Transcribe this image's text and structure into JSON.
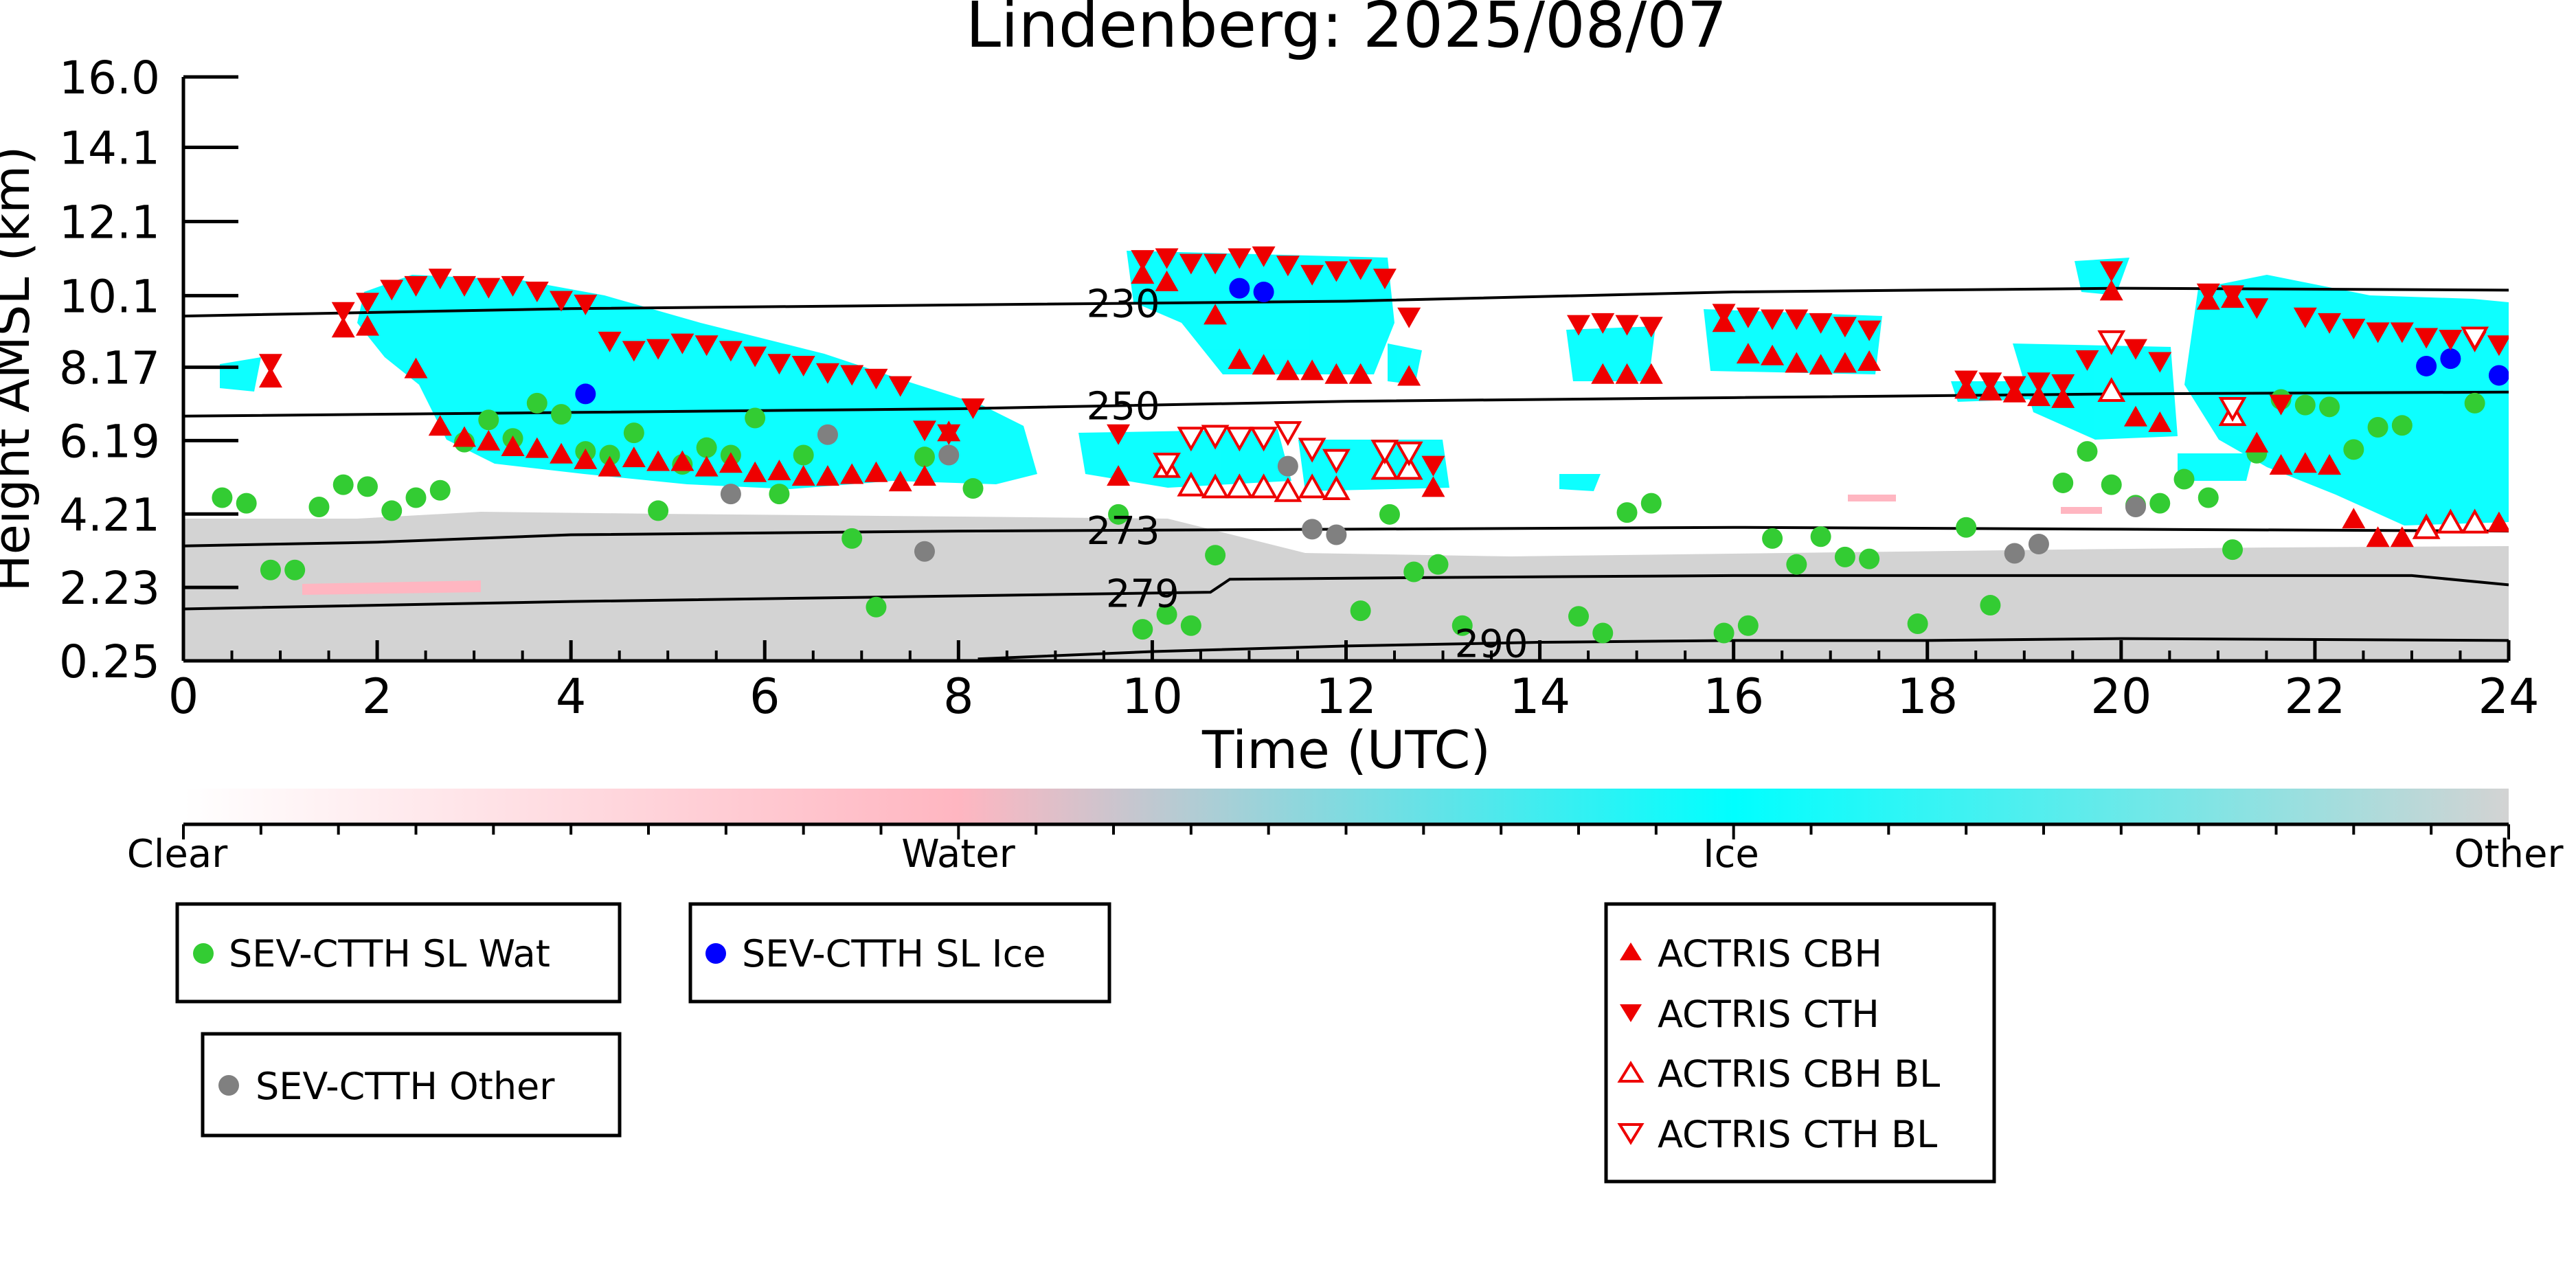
{
  "chart_data": {
    "type": "scatter",
    "title": "Lindenberg: 2025/08/07",
    "xlabel": "Time (UTC)",
    "ylabel": "Height AMSL (km)",
    "xlim": [
      0,
      24
    ],
    "ylim": [
      0.25,
      16.0
    ],
    "x_ticks": [
      "0",
      "2",
      "4",
      "6",
      "8",
      "10",
      "12",
      "14",
      "16",
      "18",
      "20",
      "22",
      "24"
    ],
    "y_ticks": [
      "0.25",
      "2.23",
      "4.21",
      "6.19",
      "8.17",
      "10.1",
      "12.1",
      "14.1",
      "16.0"
    ],
    "grid": false,
    "colorbar": {
      "labels": [
        "Clear",
        "Water",
        "Ice",
        "Other"
      ],
      "colors": [
        "#ffffff",
        "#ffb6c1",
        "#00ffff",
        "#d3d3d3"
      ]
    },
    "background_classes": {
      "ice": "#00ffff",
      "water": "#ffb6c1",
      "other": "#d3d3d3"
    },
    "isotherms": [
      {
        "label": "230",
        "label_x": 9.7,
        "points": [
          [
            0,
            9.55
          ],
          [
            4,
            9.75
          ],
          [
            8,
            9.85
          ],
          [
            12,
            9.95
          ],
          [
            16,
            10.2
          ],
          [
            20,
            10.3
          ],
          [
            24,
            10.25
          ]
        ]
      },
      {
        "label": "250",
        "label_x": 9.7,
        "points": [
          [
            0,
            6.85
          ],
          [
            4,
            6.95
          ],
          [
            8,
            7.05
          ],
          [
            12,
            7.25
          ],
          [
            16,
            7.35
          ],
          [
            20,
            7.45
          ],
          [
            24,
            7.5
          ]
        ]
      },
      {
        "label": "273",
        "label_x": 9.7,
        "points": [
          [
            0,
            3.35
          ],
          [
            2,
            3.45
          ],
          [
            4,
            3.65
          ],
          [
            8,
            3.75
          ],
          [
            12,
            3.8
          ],
          [
            16,
            3.85
          ],
          [
            20,
            3.8
          ],
          [
            24,
            3.75
          ]
        ]
      },
      {
        "label": "279",
        "label_x": 9.9,
        "points": [
          [
            0,
            1.65
          ],
          [
            4,
            1.85
          ],
          [
            8,
            2.0
          ],
          [
            10.6,
            2.1
          ],
          [
            10.8,
            2.45
          ],
          [
            13,
            2.5
          ],
          [
            16,
            2.55
          ],
          [
            20,
            2.55
          ],
          [
            23,
            2.55
          ],
          [
            24,
            2.3
          ]
        ]
      },
      {
        "label": "290",
        "label_x": 13.5,
        "points": [
          [
            8.2,
            0.3
          ],
          [
            10,
            0.5
          ],
          [
            12,
            0.65
          ],
          [
            14,
            0.75
          ],
          [
            16,
            0.8
          ],
          [
            18,
            0.8
          ],
          [
            20,
            0.85
          ],
          [
            24,
            0.8
          ]
        ]
      }
    ],
    "series": [
      {
        "name": "SEV-CTTH SL Wat",
        "marker": "circle",
        "color": "#33cc33",
        "x": [
          0.4,
          0.65,
          0.9,
          1.15,
          1.4,
          1.65,
          1.9,
          2.15,
          2.4,
          2.65,
          2.9,
          3.15,
          3.4,
          3.65,
          3.9,
          4.15,
          4.4,
          4.65,
          4.9,
          5.15,
          5.4,
          5.65,
          5.9,
          6.15,
          6.4,
          6.9,
          7.15,
          7.65,
          8.15,
          9.65,
          9.9,
          10.15,
          10.4,
          10.65,
          12.15,
          12.45,
          12.7,
          12.95,
          13.2,
          14.4,
          14.65,
          14.9,
          15.15,
          15.9,
          16.15,
          16.4,
          16.65,
          16.9,
          17.15,
          17.4,
          17.9,
          18.4,
          18.65,
          19.4,
          19.65,
          19.9,
          20.15,
          20.4,
          20.65,
          20.9,
          21.15,
          21.4,
          21.65,
          21.9,
          22.15,
          22.4,
          22.65,
          22.9,
          23.65
        ],
        "y": [
          4.65,
          4.5,
          2.7,
          2.7,
          4.4,
          5.0,
          4.95,
          4.3,
          4.65,
          4.85,
          6.15,
          6.75,
          6.25,
          7.2,
          6.9,
          5.9,
          5.8,
          6.4,
          4.3,
          5.55,
          6.0,
          5.8,
          6.8,
          4.75,
          5.8,
          3.55,
          1.7,
          5.75,
          4.9,
          4.2,
          1.1,
          1.5,
          1.2,
          3.1,
          1.6,
          4.2,
          2.65,
          2.85,
          1.2,
          1.45,
          1.0,
          4.25,
          4.5,
          1.0,
          1.2,
          3.55,
          2.85,
          3.6,
          3.05,
          3.0,
          1.25,
          3.85,
          1.75,
          5.05,
          5.9,
          5.0,
          4.45,
          4.5,
          5.15,
          4.65,
          3.25,
          5.85,
          7.3,
          7.15,
          7.1,
          5.95,
          6.55,
          6.6,
          7.2
        ]
      },
      {
        "name": "SEV-CTTH SL Ice",
        "marker": "circle",
        "color": "#0000ff",
        "x": [
          4.15,
          10.9,
          11.15,
          23.15,
          23.4,
          23.9
        ],
        "y": [
          7.45,
          10.3,
          10.2,
          8.2,
          8.4,
          7.95
        ]
      },
      {
        "name": "SEV-CTTH Other",
        "marker": "circle",
        "color": "#808080",
        "x": [
          5.65,
          6.65,
          7.65,
          7.9,
          11.4,
          11.65,
          11.9,
          18.9,
          19.15,
          20.15
        ],
        "y": [
          4.75,
          6.35,
          3.2,
          5.8,
          5.5,
          3.8,
          3.65,
          3.15,
          3.4,
          4.4
        ]
      },
      {
        "name": "ACTRIS CBH",
        "marker": "triangle-up",
        "color": "#ee0000",
        "x": [
          0.9,
          1.65,
          1.9,
          2.4,
          2.65,
          2.9,
          3.15,
          3.4,
          3.65,
          3.9,
          4.15,
          4.4,
          4.65,
          4.9,
          5.15,
          5.4,
          5.65,
          5.9,
          6.15,
          6.4,
          6.65,
          6.9,
          7.15,
          7.4,
          7.65,
          7.9,
          9.65,
          9.9,
          10.15,
          10.65,
          10.9,
          11.15,
          11.4,
          11.65,
          11.9,
          12.15,
          12.65,
          12.9,
          14.65,
          14.9,
          15.15,
          15.9,
          16.15,
          16.4,
          16.65,
          16.9,
          17.15,
          17.4,
          18.4,
          18.65,
          18.9,
          19.15,
          19.4,
          19.9,
          20.15,
          20.4,
          20.9,
          21.15,
          21.4,
          21.65,
          21.9,
          22.15,
          22.4,
          22.65,
          22.9,
          23.15,
          23.4,
          23.65,
          23.9
        ],
        "y": [
          7.9,
          9.25,
          9.3,
          8.15,
          6.6,
          6.3,
          6.2,
          6.05,
          6.0,
          5.85,
          5.7,
          5.5,
          5.75,
          5.65,
          5.65,
          5.5,
          5.6,
          5.35,
          5.4,
          5.25,
          5.25,
          5.3,
          5.35,
          5.1,
          5.25,
          6.45,
          5.25,
          10.7,
          10.5,
          9.6,
          8.4,
          8.25,
          8.1,
          8.1,
          8.0,
          8.0,
          7.95,
          4.95,
          8.0,
          8.0,
          8.0,
          9.4,
          8.55,
          8.5,
          8.3,
          8.25,
          8.3,
          8.35,
          7.6,
          7.55,
          7.5,
          7.4,
          7.35,
          10.25,
          6.85,
          6.7,
          10.0,
          10.05,
          6.15,
          5.55,
          5.6,
          5.55,
          4.1,
          3.6,
          3.6,
          3.95,
          4.0,
          4.0,
          4.0
        ]
      },
      {
        "name": "ACTRIS CTH",
        "marker": "triangle-down",
        "color": "#ee0000",
        "x": [
          0.9,
          1.65,
          1.9,
          2.15,
          2.4,
          2.65,
          2.9,
          3.15,
          3.4,
          3.65,
          3.9,
          4.15,
          4.4,
          4.65,
          4.9,
          5.15,
          5.4,
          5.65,
          5.9,
          6.15,
          6.4,
          6.65,
          6.9,
          7.15,
          7.4,
          7.65,
          7.9,
          8.15,
          9.65,
          9.9,
          10.15,
          10.4,
          10.65,
          10.9,
          11.15,
          11.4,
          11.65,
          11.9,
          12.15,
          12.4,
          12.65,
          12.9,
          14.4,
          14.65,
          14.9,
          15.15,
          15.9,
          16.15,
          16.4,
          16.65,
          16.9,
          17.15,
          17.4,
          18.4,
          18.65,
          18.9,
          19.15,
          19.4,
          19.65,
          19.9,
          20.15,
          20.4,
          20.9,
          21.15,
          21.4,
          21.65,
          21.9,
          22.15,
          22.4,
          22.65,
          22.9,
          23.15,
          23.4,
          23.65,
          23.9
        ],
        "y": [
          8.25,
          9.65,
          9.9,
          10.25,
          10.35,
          10.55,
          10.35,
          10.3,
          10.35,
          10.2,
          9.95,
          9.85,
          8.85,
          8.6,
          8.65,
          8.8,
          8.75,
          8.6,
          8.45,
          8.25,
          8.2,
          8.0,
          7.95,
          7.85,
          7.65,
          6.45,
          6.35,
          7.05,
          6.35,
          11.05,
          11.1,
          10.95,
          10.95,
          11.1,
          11.15,
          10.9,
          10.65,
          10.75,
          10.8,
          10.55,
          9.5,
          5.5,
          9.3,
          9.35,
          9.3,
          9.25,
          9.6,
          9.5,
          9.45,
          9.45,
          9.35,
          9.25,
          9.15,
          7.8,
          7.75,
          7.65,
          7.75,
          7.7,
          8.35,
          10.75,
          8.65,
          8.3,
          10.15,
          10.1,
          9.75,
          7.15,
          9.5,
          9.35,
          9.2,
          9.1,
          9.1,
          8.95,
          8.9,
          8.85,
          8.75
        ]
      },
      {
        "name": "ACTRIS CBH BL",
        "marker": "triangle-up-open",
        "color": "#ee0000",
        "x": [
          10.15,
          10.4,
          10.65,
          10.9,
          11.15,
          11.4,
          11.65,
          11.9,
          12.4,
          12.65,
          19.9,
          21.15,
          23.15,
          23.4,
          23.65
        ],
        "y": [
          5.5,
          5.0,
          4.95,
          4.95,
          4.95,
          4.85,
          4.95,
          4.9,
          5.45,
          5.45,
          7.55,
          6.9,
          3.85,
          4.0,
          4.0
        ]
      },
      {
        "name": "ACTRIS CTH BL",
        "marker": "triangle-down-open",
        "color": "#ee0000",
        "x": [
          10.15,
          10.4,
          10.65,
          10.9,
          11.15,
          11.4,
          11.65,
          11.9,
          12.4,
          12.65,
          19.9,
          21.15,
          23.65
        ],
        "y": [
          5.55,
          6.25,
          6.3,
          6.25,
          6.25,
          6.4,
          5.95,
          5.65,
          5.9,
          5.85,
          8.85,
          7.05,
          8.95
        ]
      }
    ]
  },
  "legends": [
    {
      "entries": [
        {
          "label": "SEV-CTTH SL Wat",
          "marker": "circle",
          "color": "#33cc33"
        }
      ]
    },
    {
      "entries": [
        {
          "label": "SEV-CTTH SL Ice",
          "marker": "circle",
          "color": "#0000ff"
        }
      ]
    },
    {
      "entries": [
        {
          "label": "SEV-CTTH Other",
          "marker": "circle",
          "color": "#808080"
        }
      ]
    },
    {
      "entries": [
        {
          "label": "ACTRIS CBH",
          "marker": "triangle-up",
          "color": "#ee0000"
        },
        {
          "label": "ACTRIS CTH",
          "marker": "triangle-down",
          "color": "#ee0000"
        },
        {
          "label": "ACTRIS CBH BL",
          "marker": "triangle-up-open",
          "color": "#ee0000"
        },
        {
          "label": "ACTRIS CTH BL",
          "marker": "triangle-down-open",
          "color": "#ee0000"
        }
      ]
    }
  ]
}
